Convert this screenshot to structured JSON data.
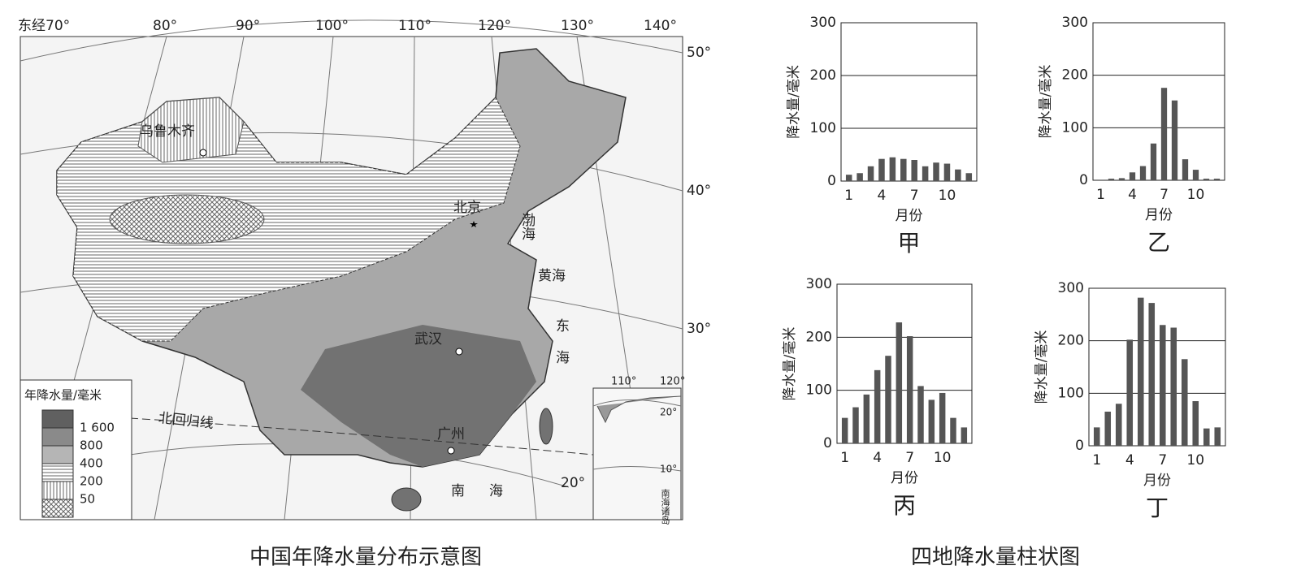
{
  "map": {
    "title": "中国年降水量分布示意图",
    "longitudes": [
      "东经70°",
      "80°",
      "90°",
      "100°",
      "110°",
      "120°",
      "130°",
      "140°"
    ],
    "latitudes": [
      "50°",
      "40°",
      "30°",
      "20°"
    ],
    "cities": [
      "乌鲁木齐",
      "北京",
      "武汉",
      "广州"
    ],
    "seas": [
      "渤海",
      "黄海",
      "东海",
      "南海"
    ],
    "tropic": "北回归线",
    "legend": {
      "title": "年降水量/毫米",
      "items": [
        "1 600",
        "800",
        "400",
        "200",
        "50"
      ]
    },
    "inset": {
      "longitudes": [
        "110°",
        "120°"
      ],
      "latitudes": [
        "20°",
        "10°"
      ],
      "label": "南海诸岛"
    }
  },
  "charts_caption": "四地降水量柱状图",
  "chart_data": [
    {
      "type": "bar",
      "title": "甲",
      "x_label": "月份",
      "y_label": "降水量/毫米",
      "color": "#555555",
      "categories": [
        1,
        null,
        null,
        4,
        null,
        null,
        7,
        null,
        null,
        10,
        null,
        null
      ],
      "values": [
        12,
        15,
        28,
        42,
        45,
        42,
        40,
        28,
        35,
        33,
        22,
        15
      ],
      "ylim": [
        0,
        300
      ],
      "yticks": [
        0,
        100,
        200,
        300
      ],
      "grid": true
    },
    {
      "type": "bar",
      "title": "乙",
      "x_label": "月份",
      "y_label": "降水量/毫米",
      "color": "#555555",
      "categories": [
        1,
        null,
        null,
        4,
        null,
        null,
        7,
        null,
        null,
        10,
        null,
        null
      ],
      "values": [
        1,
        3,
        4,
        15,
        27,
        70,
        176,
        152,
        40,
        20,
        3,
        3
      ],
      "ylim": [
        0,
        300
      ],
      "yticks": [
        0,
        100,
        200,
        300
      ],
      "grid": true
    },
    {
      "type": "bar",
      "title": "丙",
      "x_label": "月份",
      "y_label": "降水量/毫米",
      "color": "#555555",
      "categories": [
        1,
        null,
        null,
        4,
        null,
        null,
        7,
        null,
        null,
        10,
        null,
        null
      ],
      "values": [
        48,
        68,
        92,
        138,
        165,
        228,
        202,
        108,
        82,
        95,
        48,
        30
      ],
      "ylim": [
        0,
        300
      ],
      "yticks": [
        0,
        100,
        200,
        300
      ],
      "grid": true
    },
    {
      "type": "bar",
      "title": "丁",
      "x_label": "月份",
      "y_label": "降水量/毫米",
      "color": "#555555",
      "categories": [
        1,
        null,
        null,
        4,
        null,
        null,
        7,
        null,
        null,
        10,
        null,
        null
      ],
      "values": [
        35,
        65,
        80,
        202,
        282,
        272,
        230,
        225,
        165,
        85,
        33,
        35
      ],
      "ylim": [
        0,
        300
      ],
      "yticks": [
        0,
        100,
        200,
        300
      ],
      "grid": true
    }
  ]
}
